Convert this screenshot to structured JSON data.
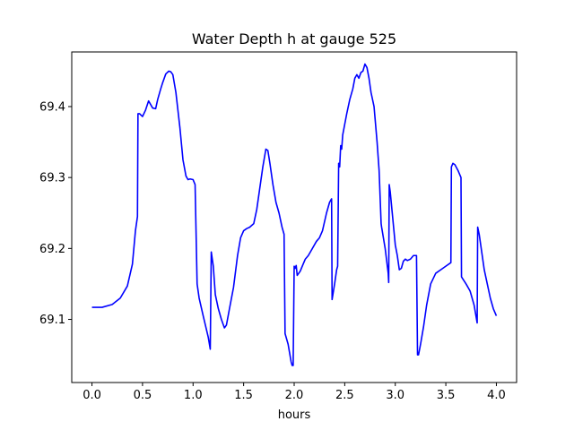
{
  "chart_data": {
    "type": "line",
    "title": "Water Depth h at gauge 525",
    "xlabel": "hours",
    "ylabel": "",
    "xlim": [
      -0.2,
      4.2
    ],
    "ylim": [
      69.011,
      69.477
    ],
    "xticks": [
      0.0,
      0.5,
      1.0,
      1.5,
      2.0,
      2.5,
      3.0,
      3.5,
      4.0
    ],
    "xtick_labels": [
      "0.0",
      "0.5",
      "1.0",
      "1.5",
      "2.0",
      "2.5",
      "3.0",
      "3.5",
      "4.0"
    ],
    "yticks": [
      69.1,
      69.2,
      69.3,
      69.4
    ],
    "ytick_labels": [
      "69.1",
      "69.2",
      "69.3",
      "69.4"
    ],
    "grid": false,
    "series": [
      {
        "color": "#0000ff",
        "x": [
          0.0,
          0.1,
          0.2,
          0.28,
          0.35,
          0.4,
          0.43,
          0.45,
          0.455,
          0.47,
          0.5,
          0.53,
          0.56,
          0.6,
          0.63,
          0.65,
          0.68,
          0.7,
          0.73,
          0.76,
          0.78,
          0.8,
          0.83,
          0.87,
          0.9,
          0.93,
          0.95,
          0.97,
          1.0,
          1.02,
          1.04,
          1.05,
          1.06,
          1.1,
          1.15,
          1.17,
          1.18,
          1.2,
          1.22,
          1.25,
          1.28,
          1.31,
          1.33,
          1.36,
          1.4,
          1.44,
          1.47,
          1.5,
          1.53,
          1.56,
          1.6,
          1.63,
          1.66,
          1.69,
          1.72,
          1.74,
          1.76,
          1.79,
          1.82,
          1.85,
          1.88,
          1.9,
          1.91,
          1.94,
          1.97,
          1.98,
          1.99,
          2.0,
          2.01,
          2.02,
          2.03,
          2.06,
          2.08,
          2.11,
          2.14,
          2.18,
          2.22,
          2.25,
          2.28,
          2.32,
          2.35,
          2.37,
          2.375,
          2.4,
          2.42,
          2.43,
          2.44,
          2.45,
          2.46,
          2.47,
          2.48,
          2.5,
          2.52,
          2.55,
          2.58,
          2.6,
          2.62,
          2.64,
          2.66,
          2.68,
          2.7,
          2.72,
          2.74,
          2.76,
          2.79,
          2.82,
          2.84,
          2.86,
          2.865,
          2.9,
          2.93,
          2.935,
          2.94,
          2.95,
          2.97,
          3.0,
          3.02,
          3.04,
          3.06,
          3.08,
          3.1,
          3.12,
          3.15,
          3.18,
          3.21,
          3.22,
          3.23,
          3.25,
          3.28,
          3.31,
          3.35,
          3.4,
          3.45,
          3.5,
          3.55,
          3.555,
          3.57,
          3.59,
          3.62,
          3.65,
          3.655,
          3.7,
          3.74,
          3.78,
          3.81,
          3.815,
          3.83,
          3.85,
          3.88,
          3.91,
          3.94,
          3.97,
          4.0
        ],
        "values": [
          69.117,
          69.117,
          69.121,
          69.13,
          69.147,
          69.178,
          69.225,
          69.245,
          69.39,
          69.39,
          69.386,
          69.395,
          69.408,
          69.398,
          69.397,
          69.41,
          69.425,
          69.434,
          69.446,
          69.45,
          69.449,
          69.445,
          69.42,
          69.37,
          69.325,
          69.302,
          69.297,
          69.298,
          69.297,
          69.29,
          69.15,
          69.14,
          69.13,
          69.105,
          69.075,
          69.058,
          69.195,
          69.175,
          69.135,
          69.115,
          69.1,
          69.088,
          69.092,
          69.115,
          69.145,
          69.19,
          69.215,
          69.225,
          69.228,
          69.23,
          69.235,
          69.255,
          69.285,
          69.315,
          69.34,
          69.338,
          69.32,
          69.29,
          69.265,
          69.25,
          69.23,
          69.22,
          69.08,
          69.065,
          69.04,
          69.035,
          69.035,
          69.175,
          69.172,
          69.176,
          69.162,
          69.168,
          69.175,
          69.185,
          69.19,
          69.2,
          69.21,
          69.215,
          69.225,
          69.25,
          69.265,
          69.27,
          69.128,
          69.15,
          69.17,
          69.175,
          69.32,
          69.315,
          69.345,
          69.34,
          69.36,
          69.375,
          69.39,
          69.41,
          69.425,
          69.44,
          69.445,
          69.44,
          69.448,
          69.45,
          69.46,
          69.455,
          69.44,
          69.42,
          69.4,
          69.35,
          69.31,
          69.235,
          69.23,
          69.2,
          69.165,
          69.152,
          69.29,
          69.28,
          69.25,
          69.205,
          69.19,
          69.17,
          69.172,
          69.182,
          69.185,
          69.183,
          69.185,
          69.19,
          69.19,
          69.05,
          69.05,
          69.065,
          69.09,
          69.12,
          69.15,
          69.165,
          69.17,
          69.175,
          69.18,
          69.315,
          69.32,
          69.318,
          69.31,
          69.3,
          69.16,
          69.15,
          69.14,
          69.12,
          69.095,
          69.23,
          69.22,
          69.2,
          69.17,
          69.15,
          69.13,
          69.115,
          69.105
        ]
      }
    ]
  }
}
